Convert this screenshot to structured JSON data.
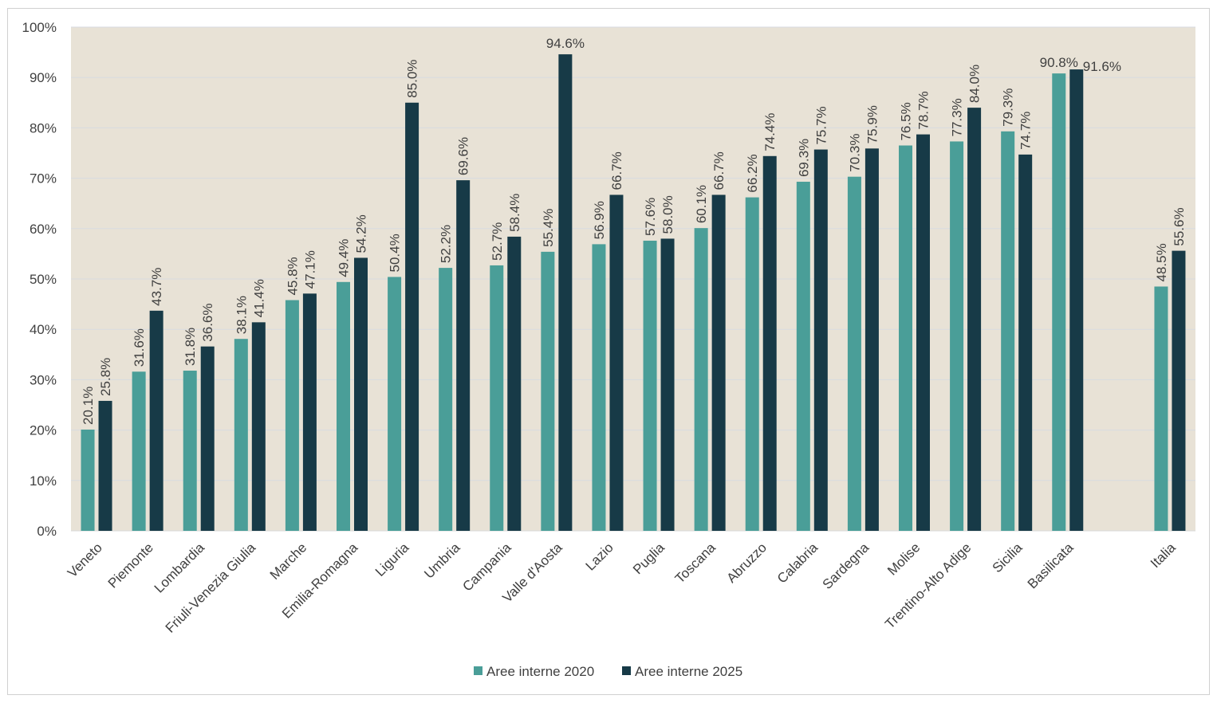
{
  "chart_data": {
    "type": "bar",
    "categories": [
      "Veneto",
      "Piemonte",
      "Lombardia",
      "Friuli-Venezia Giulia",
      "Marche",
      "Emilia-Romagna",
      "Liguria",
      "Umbria",
      "Campania",
      "Valle d'Aosta",
      "Lazio",
      "Puglia",
      "Toscana",
      "Abruzzo",
      "Calabria",
      "Sardegna",
      "Molise",
      "Trentino-Alto Adige",
      "Sicilia",
      "Basilicata",
      "",
      "Italia"
    ],
    "series": [
      {
        "name": "Aree interne 2020",
        "color": "#4a9e98",
        "values": [
          20.1,
          31.6,
          31.8,
          38.1,
          45.8,
          49.4,
          50.4,
          52.2,
          52.7,
          55.4,
          56.9,
          57.6,
          60.1,
          66.2,
          69.3,
          70.3,
          76.5,
          77.3,
          79.3,
          90.8,
          null,
          48.5
        ],
        "labels": [
          "20.1%",
          "31.6%",
          "31.8%",
          "38.1%",
          "45.8%",
          "49.4%",
          "50.4%",
          "52.2%",
          "52.7%",
          "55.4%",
          "56.9%",
          "57.6%",
          "60.1%",
          "66.2%",
          "69.3%",
          "70.3%",
          "76.5%",
          "77.3%",
          "79.3%",
          "90.8%",
          "",
          "48.5%"
        ]
      },
      {
        "name": "Aree interne 2025",
        "color": "#173a47",
        "values": [
          25.8,
          43.7,
          36.6,
          41.4,
          47.1,
          54.2,
          85.0,
          69.6,
          58.4,
          94.6,
          66.7,
          58.0,
          66.7,
          74.4,
          75.7,
          75.9,
          78.7,
          84.0,
          74.7,
          91.6,
          null,
          55.6
        ],
        "labels": [
          "25.8%",
          "43.7%",
          "36.6%",
          "41.4%",
          "47.1%",
          "54.2%",
          "85.0%",
          "69.6%",
          "58.4%",
          "94.6%",
          "66.7%",
          "58.0%",
          "66.7%",
          "74.4%",
          "75.7%",
          "75.9%",
          "78.7%",
          "84.0%",
          "74.7%",
          "91.6%",
          "",
          "55.6%"
        ]
      }
    ],
    "ylim": [
      0,
      100
    ],
    "yticks": [
      "0%",
      "10%",
      "20%",
      "30%",
      "40%",
      "50%",
      "60%",
      "70%",
      "80%",
      "90%",
      "100%"
    ],
    "grid": true,
    "legend": "bottom-center",
    "plot_background": "#e8e2d6",
    "gridline_color": "#d7dbe0"
  }
}
